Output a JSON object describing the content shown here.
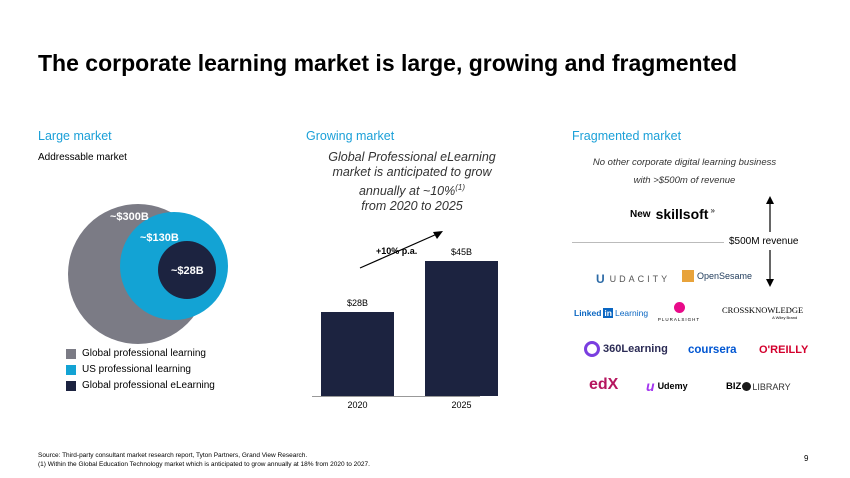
{
  "title": "The corporate learning market is large, growing and fragmented",
  "left": {
    "heading": "Large market",
    "subheading": "Addressable market",
    "circles": [
      {
        "label": "~$300B",
        "color": "#7b7b85"
      },
      {
        "label": "~$130B",
        "color": "#13a3d4"
      },
      {
        "label": "~$28B",
        "color": "#1c2340"
      }
    ],
    "legend": [
      {
        "label": "Global professional learning",
        "color": "#7b7b85"
      },
      {
        "label": "US professional learning",
        "color": "#13a3d4"
      },
      {
        "label": "Global professional eLearning",
        "color": "#1c2340"
      }
    ]
  },
  "middle": {
    "heading": "Growing market",
    "note_line1": "Global Professional eLearning",
    "note_line2": "market is anticipated to grow",
    "note_line3": "annually at ~10%",
    "note_sup": "(1)",
    "note_line4": "from 2020 to 2025",
    "growth_label": "+10% p.a."
  },
  "chart_data": {
    "type": "bar",
    "categories": [
      "2020",
      "2025"
    ],
    "values": [
      28,
      45
    ],
    "value_labels": [
      "$28B",
      "$45B"
    ],
    "ylim": [
      0,
      50
    ],
    "color": "#1c2340"
  },
  "right": {
    "heading": "Fragmented market",
    "note_line1": "No other corporate digital learning business",
    "note_line2": "with >$500m of revenue",
    "new_label": "New",
    "skillsoft": "skillsoft",
    "threshold": "$500M revenue",
    "logos": {
      "udacity": "UDACITY",
      "opensesame": "OpenSesame",
      "linkedin_a": "Linked",
      "linkedin_b": "in",
      "linkedin_c": "Learning",
      "pluralsight": "PLURALSIGHT",
      "crossknowledge": "CROSSKNOWLEDGE",
      "crossknowledge_sub": "A Wiley Brand",
      "learning360": "360Learning",
      "coursera": "coursera",
      "oreilly": "O'REILLY",
      "edx": "edX",
      "udemy": "Udemy",
      "biz": "BIZ",
      "library": "LIBRARY"
    }
  },
  "page_number": "9",
  "footer": {
    "source": "Source: Third-party consultant market research report, Tyton Partners, Grand View Research.",
    "note": "(1) Within the Global Education Technology market which is anticipated to grow annually at 18% from 2020 to 2027."
  }
}
